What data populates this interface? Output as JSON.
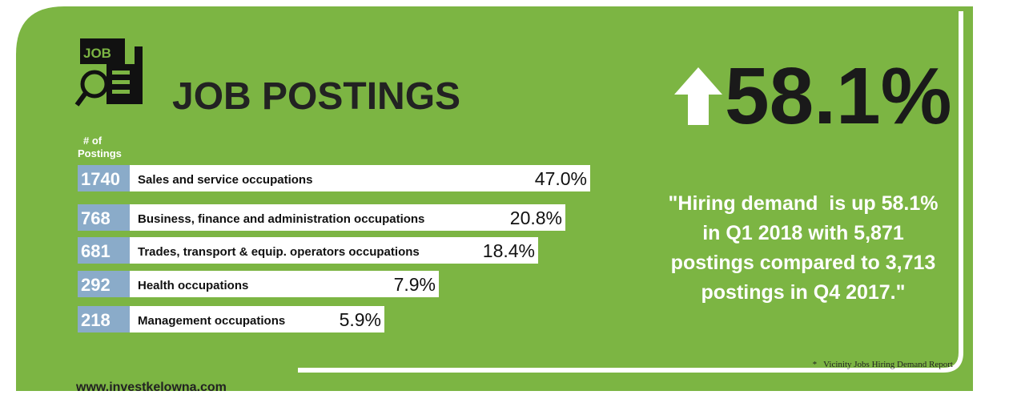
{
  "header": {
    "title": "JOB POSTINGS",
    "icon_label": "JOB"
  },
  "headline": {
    "value": "58.1%"
  },
  "column_label": [
    "# of",
    "Postings"
  ],
  "rows": [
    {
      "count": 1740,
      "label": "Sales and service occupations",
      "percent": "47.0%"
    },
    {
      "count": 768,
      "label": "Business, finance and administration occupations",
      "percent": "20.8%"
    },
    {
      "count": 681,
      "label": "Trades, transport & equip. operators occupations",
      "percent": "18.4%"
    },
    {
      "count": 292,
      "label": "Health occupations",
      "percent": "7.9%"
    },
    {
      "count": 218,
      "label": "Management occupations",
      "percent": "5.9%"
    }
  ],
  "quote": [
    "\"Hiring demand  is up 58.1%",
    "in Q1 2018 with 5,871",
    "postings compared to 3,713",
    "postings in Q4 2017.\""
  ],
  "footnote": "*   Vicinity Jobs Hiring Demand Report",
  "website": "www.investkelowna.com"
}
